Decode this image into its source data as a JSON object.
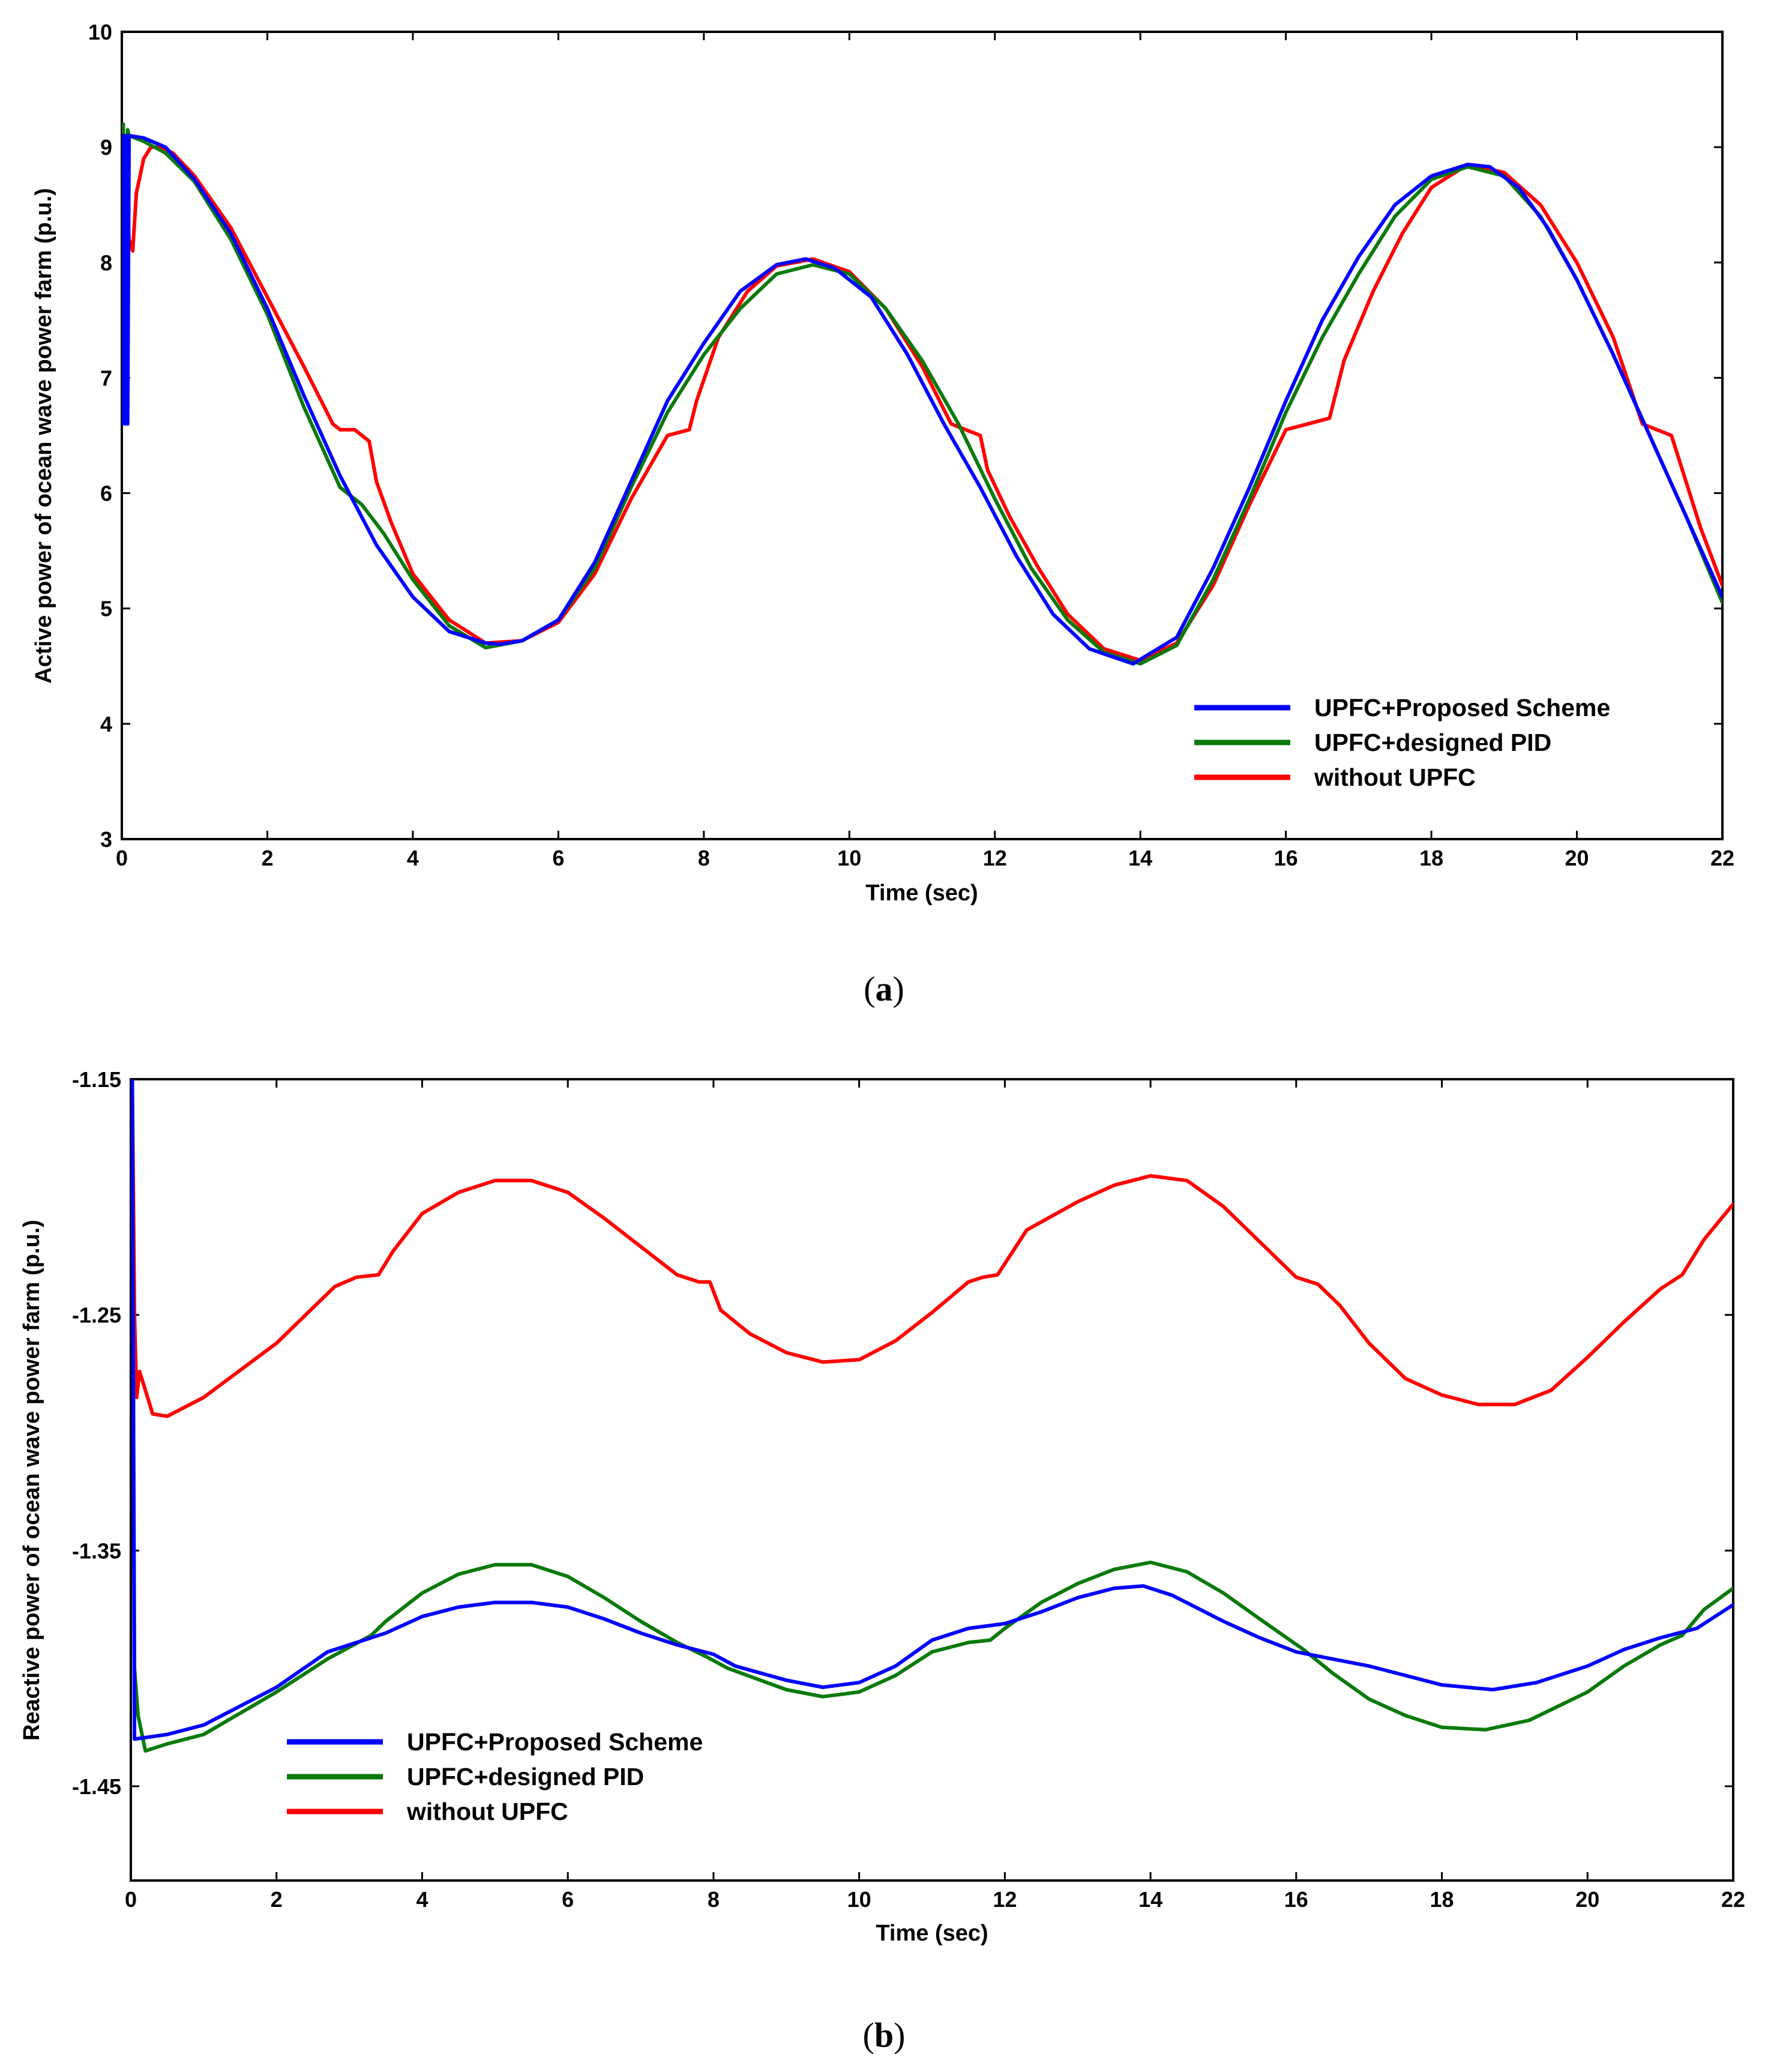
{
  "chart_data": [
    {
      "id": "a",
      "type": "line",
      "caption_label": "a",
      "title": "",
      "xlabel": "Time (sec)",
      "ylabel": "Active power of ocean wave power farm (p.u.)",
      "xlim": [
        0,
        22
      ],
      "ylim": [
        3,
        10
      ],
      "xticks": [
        0,
        2,
        4,
        6,
        8,
        10,
        12,
        14,
        16,
        18,
        20,
        22
      ],
      "yticks": [
        3,
        4,
        5,
        6,
        7,
        8,
        9,
        10
      ],
      "xtick_labels": [
        "0",
        "2",
        "4",
        "6",
        "8",
        "10",
        "12",
        "14",
        "16",
        "18",
        "20",
        "22"
      ],
      "ytick_labels": [
        "3",
        "4",
        "5",
        "6",
        "7",
        "8",
        "9",
        "10"
      ],
      "grid": false,
      "legend_position": "bottom-right",
      "series": [
        {
          "name": "UPFC+Proposed Scheme",
          "color": "#0000ff",
          "x": [
            0,
            0.02,
            0.04,
            0.06,
            0.08,
            0.1,
            0.3,
            0.6,
            1.0,
            1.5,
            2.0,
            2.5,
            3.0,
            3.5,
            4.0,
            4.5,
            5.0,
            5.2,
            5.5,
            6.0,
            6.5,
            7.0,
            7.5,
            8.0,
            8.5,
            9.0,
            9.4,
            9.8,
            10.3,
            10.8,
            11.3,
            11.8,
            12.3,
            12.8,
            13.3,
            13.9,
            14.5,
            15.0,
            15.5,
            16.0,
            16.5,
            17.0,
            17.5,
            18.0,
            18.5,
            18.8,
            19.2,
            19.6,
            20.0,
            20.5,
            21.0,
            21.5,
            22.0
          ],
          "values": [
            6.6,
            9.1,
            6.6,
            9.1,
            6.6,
            9.1,
            9.08,
            9.0,
            8.72,
            8.25,
            7.6,
            6.85,
            6.15,
            5.55,
            5.1,
            4.8,
            4.7,
            4.69,
            4.72,
            4.9,
            5.4,
            6.1,
            6.8,
            7.3,
            7.75,
            7.98,
            8.03,
            7.95,
            7.7,
            7.2,
            6.6,
            6.05,
            5.45,
            4.95,
            4.65,
            4.52,
            4.75,
            5.35,
            6.05,
            6.8,
            7.5,
            8.05,
            8.5,
            8.75,
            8.85,
            8.83,
            8.65,
            8.3,
            7.85,
            7.2,
            6.5,
            5.8,
            5.1
          ]
        },
        {
          "name": "UPFC+designed PID",
          "color": "#0a7a0a",
          "x": [
            0,
            0.02,
            0.05,
            0.08,
            0.1,
            0.3,
            0.6,
            1.0,
            1.5,
            2.0,
            2.5,
            3.0,
            3.3,
            3.6,
            4.0,
            4.5,
            5.0,
            5.5,
            6.0,
            6.5,
            7.0,
            7.5,
            8.0,
            8.5,
            9.0,
            9.5,
            10.0,
            10.5,
            11.0,
            11.5,
            12.0,
            12.5,
            13.0,
            13.5,
            14.0,
            14.5,
            15.0,
            15.5,
            16.0,
            16.5,
            17.0,
            17.5,
            18.0,
            18.5,
            19.0,
            19.5,
            20.0,
            20.5,
            21.0,
            21.5,
            22.0
          ],
          "values": [
            6.6,
            9.2,
            6.6,
            9.15,
            9.1,
            9.05,
            8.95,
            8.7,
            8.2,
            7.55,
            6.75,
            6.05,
            5.9,
            5.65,
            5.25,
            4.85,
            4.66,
            4.72,
            4.9,
            5.35,
            6.05,
            6.7,
            7.2,
            7.6,
            7.9,
            7.98,
            7.9,
            7.6,
            7.15,
            6.6,
            5.95,
            5.35,
            4.9,
            4.62,
            4.52,
            4.68,
            5.25,
            5.95,
            6.7,
            7.35,
            7.9,
            8.4,
            8.72,
            8.83,
            8.75,
            8.4,
            7.85,
            7.2,
            6.5,
            5.8,
            5.05
          ]
        },
        {
          "name": "without UPFC",
          "color": "#ff0000",
          "x": [
            0,
            0.05,
            0.1,
            0.15,
            0.2,
            0.3,
            0.4,
            0.5,
            0.7,
            1.0,
            1.5,
            2.0,
            2.5,
            2.9,
            3.0,
            3.2,
            3.4,
            3.5,
            3.7,
            4.0,
            4.5,
            5.0,
            5.5,
            6.0,
            6.5,
            7.0,
            7.5,
            7.8,
            7.9,
            8.2,
            8.6,
            9.0,
            9.5,
            10.0,
            10.5,
            11.0,
            11.4,
            11.6,
            11.8,
            11.9,
            12.2,
            12.6,
            13.0,
            13.5,
            14.0,
            14.5,
            15.0,
            15.5,
            16.0,
            16.3,
            16.6,
            16.8,
            17.2,
            17.6,
            18.0,
            18.5,
            19.0,
            19.5,
            20.0,
            20.5,
            20.9,
            21.1,
            21.3,
            21.5,
            21.7,
            22.0
          ],
          "values": [
            6.6,
            8.7,
            8.2,
            8.1,
            8.6,
            8.9,
            9.0,
            9.0,
            8.95,
            8.75,
            8.3,
            7.7,
            7.1,
            6.6,
            6.55,
            6.55,
            6.45,
            6.1,
            5.75,
            5.3,
            4.9,
            4.7,
            4.72,
            4.88,
            5.3,
            5.95,
            6.5,
            6.55,
            6.8,
            7.35,
            7.75,
            7.97,
            8.03,
            7.92,
            7.6,
            7.1,
            6.6,
            6.55,
            6.5,
            6.2,
            5.8,
            5.35,
            4.95,
            4.65,
            4.55,
            4.7,
            5.2,
            5.9,
            6.55,
            6.6,
            6.65,
            7.15,
            7.75,
            8.25,
            8.65,
            8.85,
            8.78,
            8.5,
            8.0,
            7.35,
            6.6,
            6.55,
            6.5,
            6.1,
            5.7,
            5.2
          ]
        }
      ]
    },
    {
      "id": "b",
      "type": "line",
      "caption_label": "b",
      "title": "",
      "xlabel": "Time (sec)",
      "ylabel": "Reactive power of ocean wave power farm (p.u.)",
      "xlim": [
        0,
        22
      ],
      "ylim": [
        -1.49,
        -1.15
      ],
      "xticks": [
        0,
        2,
        4,
        6,
        8,
        10,
        12,
        14,
        16,
        18,
        20,
        22
      ],
      "yticks": [
        -1.15,
        -1.25,
        -1.35,
        -1.45
      ],
      "xtick_labels": [
        "0",
        "2",
        "4",
        "6",
        "8",
        "10",
        "12",
        "14",
        "16",
        "18",
        "20",
        "22"
      ],
      "ytick_labels": [
        "-1.15",
        "-1.25",
        "-1.35",
        "-1.45"
      ],
      "grid": false,
      "legend_position": "bottom-left",
      "series": [
        {
          "name": "UPFC+Proposed Scheme",
          "color": "#0000ff",
          "x": [
            0.02,
            0.05,
            0.5,
            1.0,
            2.0,
            2.7,
            3.5,
            4.0,
            4.5,
            5.0,
            5.5,
            6.0,
            6.5,
            7.0,
            7.5,
            8.0,
            8.3,
            9.0,
            9.5,
            10.0,
            10.5,
            11.0,
            11.5,
            12.0,
            12.5,
            13.0,
            13.5,
            13.9,
            14.3,
            15.0,
            15.5,
            16.0,
            16.5,
            17.0,
            17.5,
            18.0,
            18.7,
            19.3,
            20.0,
            20.5,
            21.0,
            21.5,
            22.0
          ],
          "values": [
            -1.15,
            -1.43,
            -1.428,
            -1.424,
            -1.408,
            -1.393,
            -1.385,
            -1.378,
            -1.374,
            -1.372,
            -1.372,
            -1.374,
            -1.379,
            -1.385,
            -1.39,
            -1.394,
            -1.399,
            -1.405,
            -1.408,
            -1.406,
            -1.399,
            -1.388,
            -1.383,
            -1.381,
            -1.376,
            -1.37,
            -1.366,
            -1.365,
            -1.369,
            -1.38,
            -1.387,
            -1.393,
            -1.396,
            -1.399,
            -1.403,
            -1.407,
            -1.409,
            -1.406,
            -1.399,
            -1.392,
            -1.387,
            -1.383,
            -1.373
          ]
        },
        {
          "name": "UPFC+designed PID",
          "color": "#0a7a0a",
          "x": [
            0.02,
            0.05,
            0.1,
            0.2,
            0.5,
            1.0,
            2.0,
            2.7,
            3.3,
            3.5,
            4.0,
            4.5,
            5.0,
            5.5,
            6.0,
            6.5,
            7.0,
            7.5,
            7.9,
            8.2,
            9.0,
            9.5,
            10.0,
            10.5,
            11.0,
            11.5,
            11.8,
            12.0,
            12.5,
            13.0,
            13.5,
            14.0,
            14.5,
            15.0,
            15.5,
            16.1,
            16.5,
            17.0,
            17.5,
            18.0,
            18.6,
            19.2,
            20.0,
            20.5,
            21.0,
            21.3,
            21.6,
            22.0
          ],
          "values": [
            -1.15,
            -1.4,
            -1.42,
            -1.435,
            -1.432,
            -1.428,
            -1.41,
            -1.396,
            -1.386,
            -1.38,
            -1.368,
            -1.36,
            -1.356,
            -1.356,
            -1.361,
            -1.37,
            -1.38,
            -1.389,
            -1.395,
            -1.4,
            -1.409,
            -1.412,
            -1.41,
            -1.403,
            -1.393,
            -1.389,
            -1.388,
            -1.383,
            -1.372,
            -1.364,
            -1.358,
            -1.355,
            -1.359,
            -1.368,
            -1.379,
            -1.392,
            -1.402,
            -1.413,
            -1.42,
            -1.425,
            -1.426,
            -1.422,
            -1.41,
            -1.399,
            -1.39,
            -1.386,
            -1.375,
            -1.366
          ]
        },
        {
          "name": "without UPFC",
          "color": "#ff0000",
          "x": [
            0.02,
            0.05,
            0.08,
            0.12,
            0.2,
            0.3,
            0.5,
            1.0,
            2.0,
            2.8,
            3.1,
            3.4,
            3.6,
            4.0,
            4.5,
            5.0,
            5.5,
            6.0,
            6.5,
            7.0,
            7.5,
            7.8,
            7.95,
            8.1,
            8.5,
            9.0,
            9.5,
            10.0,
            10.5,
            11.0,
            11.5,
            11.7,
            11.9,
            12.3,
            13.0,
            13.5,
            14.0,
            14.5,
            15.0,
            15.5,
            16.0,
            16.3,
            16.6,
            17.0,
            17.5,
            18.0,
            18.5,
            19.0,
            19.5,
            20.0,
            20.5,
            21.0,
            21.3,
            21.6,
            22.0
          ],
          "values": [
            -1.15,
            -1.25,
            -1.285,
            -1.274,
            -1.282,
            -1.292,
            -1.293,
            -1.285,
            -1.262,
            -1.238,
            -1.234,
            -1.233,
            -1.223,
            -1.207,
            -1.198,
            -1.193,
            -1.193,
            -1.198,
            -1.209,
            -1.221,
            -1.233,
            -1.236,
            -1.236,
            -1.248,
            -1.258,
            -1.266,
            -1.27,
            -1.269,
            -1.261,
            -1.249,
            -1.236,
            -1.234,
            -1.233,
            -1.214,
            -1.202,
            -1.195,
            -1.191,
            -1.193,
            -1.204,
            -1.219,
            -1.234,
            -1.237,
            -1.246,
            -1.262,
            -1.277,
            -1.284,
            -1.288,
            -1.288,
            -1.282,
            -1.268,
            -1.253,
            -1.239,
            -1.233,
            -1.218,
            -1.203
          ]
        }
      ]
    }
  ]
}
